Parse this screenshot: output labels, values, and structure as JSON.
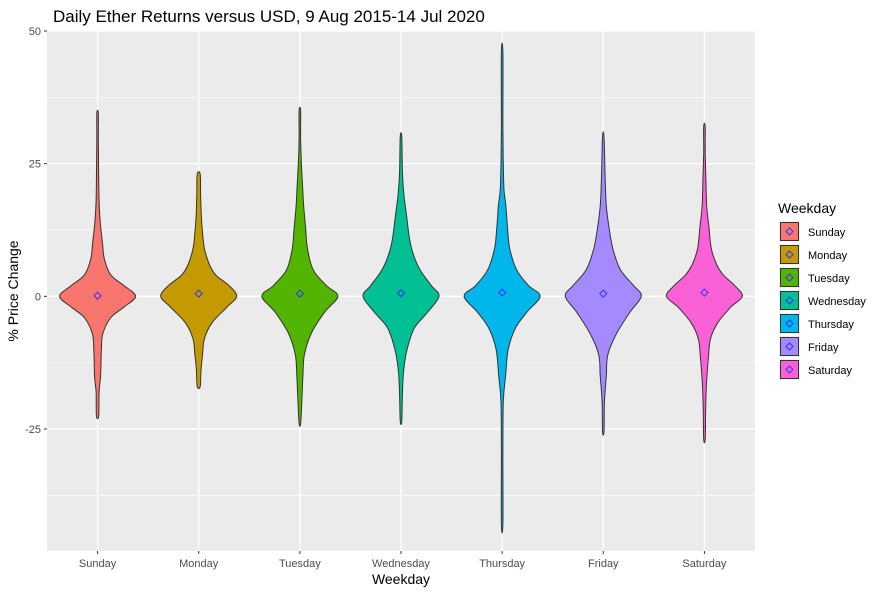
{
  "chart_data": {
    "type": "violin",
    "title": "Daily Ether Returns versus USD, 9 Aug 2015-14 Jul 2020",
    "xlabel": "Weekday",
    "ylabel": "% Price Change",
    "ylim": [
      -48,
      50
    ],
    "yticks": [
      -25,
      0,
      25,
      50
    ],
    "yticklabels": [
      "-25",
      "0",
      "25",
      "50"
    ],
    "grid": true,
    "legend": {
      "title": "Weekday",
      "position": "right"
    },
    "categories": [
      "Sunday",
      "Monday",
      "Tuesday",
      "Wednesday",
      "Thursday",
      "Friday",
      "Saturday"
    ],
    "series": [
      {
        "name": "Sunday",
        "color": "#F8766D",
        "min": -22.5,
        "max": 34.5,
        "mean": 0.1,
        "profile": [
          [
            -22.5,
            0.03
          ],
          [
            -18,
            0.04
          ],
          [
            -15,
            0.08
          ],
          [
            -10,
            0.1
          ],
          [
            -7,
            0.14
          ],
          [
            -4,
            0.35
          ],
          [
            -2,
            0.7
          ],
          [
            0,
            1.0
          ],
          [
            2,
            0.7
          ],
          [
            4,
            0.35
          ],
          [
            7,
            0.18
          ],
          [
            10,
            0.13
          ],
          [
            14,
            0.07
          ],
          [
            18,
            0.04
          ],
          [
            22,
            0.03
          ],
          [
            30,
            0.02
          ],
          [
            34.5,
            0.02
          ]
        ]
      },
      {
        "name": "Monday",
        "color": "#C49A00",
        "min": -17,
        "max": 23,
        "mean": 0.5,
        "profile": [
          [
            -17,
            0.04
          ],
          [
            -14,
            0.06
          ],
          [
            -11,
            0.1
          ],
          [
            -8,
            0.15
          ],
          [
            -5,
            0.35
          ],
          [
            -2,
            0.75
          ],
          [
            0,
            1.0
          ],
          [
            2,
            0.8
          ],
          [
            4,
            0.45
          ],
          [
            6,
            0.28
          ],
          [
            9,
            0.15
          ],
          [
            12,
            0.1
          ],
          [
            15,
            0.07
          ],
          [
            19,
            0.05
          ],
          [
            23,
            0.04
          ]
        ]
      },
      {
        "name": "Tuesday",
        "color": "#53B400",
        "min": -24,
        "max": 35,
        "mean": 0.5,
        "profile": [
          [
            -24,
            0.02
          ],
          [
            -20,
            0.05
          ],
          [
            -15,
            0.08
          ],
          [
            -11,
            0.12
          ],
          [
            -7,
            0.3
          ],
          [
            -3,
            0.65
          ],
          [
            0,
            1.0
          ],
          [
            2,
            0.7
          ],
          [
            5,
            0.35
          ],
          [
            9,
            0.2
          ],
          [
            13,
            0.15
          ],
          [
            17,
            0.1
          ],
          [
            21,
            0.07
          ],
          [
            25,
            0.04
          ],
          [
            30,
            0.02
          ],
          [
            35,
            0.02
          ]
        ]
      },
      {
        "name": "Wednesday",
        "color": "#00C094",
        "min": -23.5,
        "max": 30,
        "mean": 0.6,
        "profile": [
          [
            -23.5,
            0.02
          ],
          [
            -18,
            0.04
          ],
          [
            -14,
            0.07
          ],
          [
            -10,
            0.16
          ],
          [
            -6,
            0.35
          ],
          [
            -3,
            0.7
          ],
          [
            0,
            1.0
          ],
          [
            2,
            0.8
          ],
          [
            5,
            0.5
          ],
          [
            8,
            0.32
          ],
          [
            11,
            0.22
          ],
          [
            15,
            0.15
          ],
          [
            19,
            0.08
          ],
          [
            23,
            0.04
          ],
          [
            30,
            0.02
          ]
        ]
      },
      {
        "name": "Thursday",
        "color": "#00B6EB",
        "min": -43,
        "max": 46,
        "mean": 0.7,
        "profile": [
          [
            -43,
            0.02
          ],
          [
            -30,
            0.02
          ],
          [
            -20,
            0.03
          ],
          [
            -15,
            0.09
          ],
          [
            -10,
            0.16
          ],
          [
            -6,
            0.35
          ],
          [
            -3,
            0.65
          ],
          [
            0,
            1.0
          ],
          [
            2,
            0.7
          ],
          [
            5,
            0.38
          ],
          [
            9,
            0.2
          ],
          [
            13,
            0.14
          ],
          [
            17,
            0.1
          ],
          [
            20,
            0.05
          ],
          [
            25,
            0.03
          ],
          [
            32,
            0.02
          ],
          [
            46,
            0.02
          ]
        ]
      },
      {
        "name": "Friday",
        "color": "#A58AFF",
        "min": -25.5,
        "max": 30,
        "mean": 0.5,
        "profile": [
          [
            -25.5,
            0.02
          ],
          [
            -20,
            0.03
          ],
          [
            -15,
            0.08
          ],
          [
            -11,
            0.12
          ],
          [
            -7,
            0.35
          ],
          [
            -3,
            0.7
          ],
          [
            0,
            1.0
          ],
          [
            2,
            0.8
          ],
          [
            5,
            0.45
          ],
          [
            9,
            0.25
          ],
          [
            13,
            0.15
          ],
          [
            17,
            0.08
          ],
          [
            22,
            0.05
          ],
          [
            30,
            0.02
          ]
        ]
      },
      {
        "name": "Saturday",
        "color": "#FB61D7",
        "min": -27,
        "max": 32,
        "mean": 0.7,
        "profile": [
          [
            -27,
            0.02
          ],
          [
            -22,
            0.03
          ],
          [
            -17,
            0.05
          ],
          [
            -12,
            0.1
          ],
          [
            -8,
            0.16
          ],
          [
            -5,
            0.35
          ],
          [
            -2,
            0.7
          ],
          [
            0,
            1.0
          ],
          [
            2,
            0.8
          ],
          [
            4,
            0.5
          ],
          [
            6,
            0.32
          ],
          [
            9,
            0.18
          ],
          [
            13,
            0.12
          ],
          [
            17,
            0.06
          ],
          [
            22,
            0.04
          ],
          [
            27,
            0.02
          ],
          [
            32,
            0.02
          ]
        ]
      }
    ]
  }
}
